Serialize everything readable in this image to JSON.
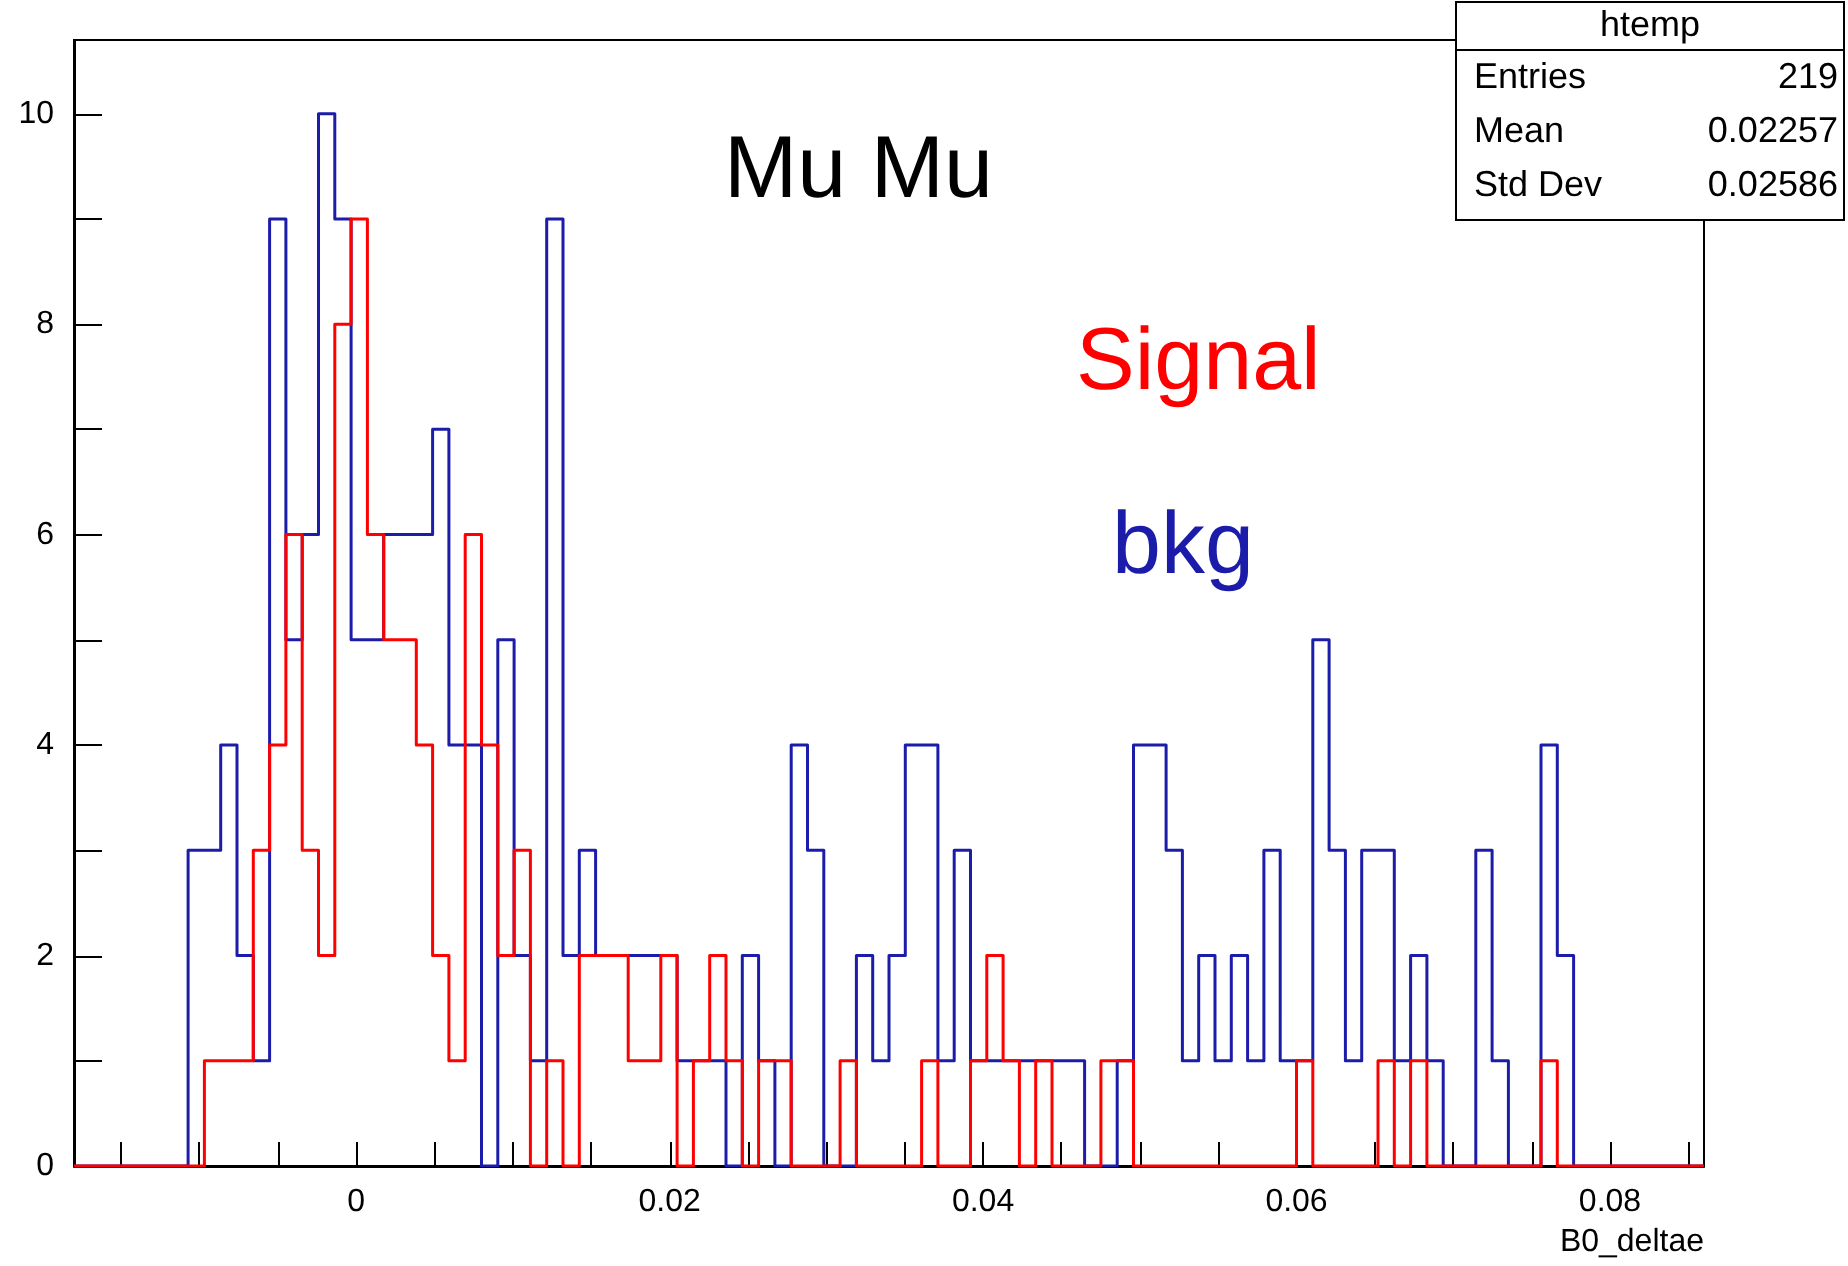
{
  "chart_data": {
    "type": "histogram",
    "title": "Mu Mu",
    "xlabel": "B0_deltae",
    "xlim": [
      -0.018,
      0.086
    ],
    "ylim": [
      0,
      10.7
    ],
    "xticks": [
      {
        "value": -0.015,
        "label": null
      },
      {
        "value": -0.01,
        "label": null
      },
      {
        "value": -0.005,
        "label": null
      },
      0,
      {
        "value": 0.005,
        "label": null
      },
      {
        "value": 0.01,
        "label": null
      },
      {
        "value": 0.015,
        "label": null
      },
      0.02,
      {
        "value": 0.025,
        "label": null
      },
      {
        "value": 0.03,
        "label": null
      },
      {
        "value": 0.035,
        "label": null
      },
      0.04,
      {
        "value": 0.045,
        "label": null
      },
      {
        "value": 0.05,
        "label": null
      },
      {
        "value": 0.055,
        "label": null
      },
      0.06,
      {
        "value": 0.065,
        "label": null
      },
      {
        "value": 0.07,
        "label": null
      },
      {
        "value": 0.075,
        "label": null
      },
      0.08,
      {
        "value": 0.085,
        "label": null
      }
    ],
    "yticks": [
      0,
      {
        "value": 1,
        "label": null
      },
      2,
      {
        "value": 3,
        "label": null
      },
      4,
      {
        "value": 5,
        "label": null
      },
      6,
      {
        "value": 7,
        "label": null
      },
      8,
      {
        "value": 9,
        "label": null
      },
      10
    ],
    "grid": false,
    "legend": false,
    "bins": [
      -0.018,
      -0.01696,
      -0.01592,
      -0.01488,
      -0.01384,
      -0.0128,
      -0.01176,
      -0.01072,
      -0.00968,
      -0.00864,
      -0.0076,
      -0.00656,
      -0.00552,
      -0.00448,
      -0.00344,
      -0.0024,
      -0.00136,
      -0.00032,
      0.00072,
      0.00176,
      0.0028,
      0.00384,
      0.00488,
      0.00592,
      0.00696,
      0.008,
      0.00904,
      0.01008,
      0.01112,
      0.01216,
      0.0132,
      0.01424,
      0.01528,
      0.01632,
      0.01736,
      0.0184,
      0.01944,
      0.02048,
      0.02152,
      0.02256,
      0.0236,
      0.02464,
      0.02568,
      0.02672,
      0.02776,
      0.0288,
      0.02984,
      0.03088,
      0.03192,
      0.03296,
      0.034,
      0.03504,
      0.03608,
      0.03712,
      0.03816,
      0.0392,
      0.04024,
      0.04128,
      0.04232,
      0.04336,
      0.0444,
      0.04544,
      0.04648,
      0.04752,
      0.04856,
      0.0496,
      0.05064,
      0.05168,
      0.05272,
      0.05376,
      0.0548,
      0.05584,
      0.05688,
      0.05792,
      0.05896,
      0.06,
      0.06104,
      0.06208,
      0.06312,
      0.06416,
      0.0652,
      0.06624,
      0.06728,
      0.06832,
      0.06936,
      0.0704,
      0.07144,
      0.07248,
      0.07352,
      0.07456,
      0.0756,
      0.07664,
      0.07768,
      0.07872,
      0.07976,
      0.0808,
      0.08184,
      0.08288,
      0.08392,
      0.08496,
      0.086
    ],
    "series": [
      {
        "name": "bkg",
        "color": "#1c1caa",
        "values": [
          0,
          0,
          0,
          0,
          0,
          0,
          0,
          3,
          3,
          4,
          2,
          1,
          9,
          5,
          6,
          10,
          9,
          5,
          5,
          6,
          6,
          6,
          7,
          4,
          4,
          0,
          5,
          2,
          1,
          9,
          2,
          3,
          2,
          2,
          2,
          2,
          2,
          1,
          1,
          1,
          0,
          2,
          1,
          0,
          4,
          3,
          0,
          0,
          2,
          1,
          2,
          4,
          4,
          1,
          3,
          1,
          1,
          1,
          1,
          1,
          1,
          1,
          0,
          0,
          1,
          4,
          4,
          3,
          1,
          2,
          1,
          2,
          1,
          3,
          1,
          1,
          5,
          3,
          1,
          3,
          3,
          1,
          2,
          1,
          0,
          0,
          3,
          1,
          0,
          0,
          4,
          2,
          0,
          0,
          0,
          0,
          0,
          0,
          0,
          0
        ]
      },
      {
        "name": "Signal",
        "color": "#ff0000",
        "values": [
          0,
          0,
          0,
          0,
          0,
          0,
          0,
          0,
          1,
          1,
          1,
          3,
          4,
          6,
          3,
          2,
          8,
          9,
          6,
          5,
          5,
          4,
          2,
          1,
          6,
          4,
          2,
          3,
          0,
          1,
          0,
          2,
          2,
          2,
          1,
          1,
          2,
          0,
          1,
          2,
          1,
          0,
          1,
          1,
          0,
          0,
          0,
          1,
          0,
          0,
          0,
          0,
          1,
          0,
          0,
          1,
          2,
          1,
          0,
          1,
          0,
          0,
          0,
          1,
          1,
          0,
          0,
          0,
          0,
          0,
          0,
          0,
          0,
          0,
          0,
          1,
          0,
          0,
          0,
          0,
          1,
          0,
          1,
          0,
          0,
          0,
          0,
          0,
          0,
          0,
          1,
          0,
          0,
          0,
          0,
          0,
          0,
          0,
          0,
          0
        ]
      }
    ],
    "annotations": [
      "htemp",
      "Entries",
      "219",
      "Mean",
      "0.02257",
      "Std Dev",
      "0.02586"
    ]
  }
}
